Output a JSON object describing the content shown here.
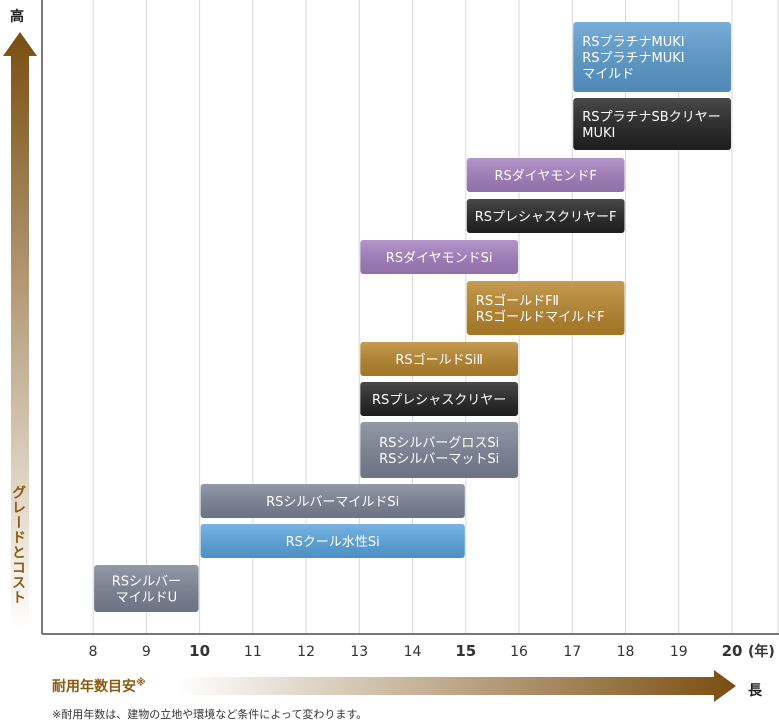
{
  "labels": {
    "high": "高",
    "long": "長",
    "y_title": "グレードとコスト",
    "x_title": "耐用年数目安",
    "x_title_mark": "※",
    "footnote": "※耐用年数は、建物の立地や環境など条件によって変わります。"
  },
  "chart_data": {
    "type": "bar",
    "orientation": "horizontal-range",
    "x": [
      8,
      9,
      10,
      11,
      12,
      13,
      14,
      15,
      16,
      17,
      18,
      19,
      20
    ],
    "x_tick_labels": [
      "8",
      "9",
      "10",
      "11",
      "12",
      "13",
      "14",
      "15",
      "16",
      "17",
      "18",
      "19",
      "20"
    ],
    "x_bold_ticks": [
      "10",
      "15",
      "20"
    ],
    "x_unit": "(年)",
    "xlim": [
      7.04,
      20
    ],
    "grid": true,
    "colors": {
      "slate": "#7b8496",
      "lightblue": "#5aa5e0",
      "black": "#222222",
      "gold": "#b8862c",
      "purple": "#a57fc0",
      "skyblue": "#5b9ccf",
      "arrow": "#7a4e10"
    },
    "bars": [
      {
        "lines": [
          "RSプラチナMUKI",
          "RSプラチナMUKI",
          "マイルド"
        ],
        "start": 17,
        "end": 20,
        "color": "skyblue"
      },
      {
        "lines": [
          "RSプラチナSBクリヤー",
          "MUKI"
        ],
        "start": 17,
        "end": 20,
        "color": "black"
      },
      {
        "lines": [
          "RSダイヤモンドF"
        ],
        "start": 15,
        "end": 18,
        "color": "purple"
      },
      {
        "lines": [
          "RSプレシャスクリヤーF"
        ],
        "start": 15,
        "end": 18,
        "color": "black"
      },
      {
        "lines": [
          "RSダイヤモンドSi"
        ],
        "start": 13,
        "end": 16,
        "color": "purple"
      },
      {
        "lines": [
          "RSゴールドFⅡ",
          "RSゴールドマイルドF"
        ],
        "start": 15,
        "end": 18,
        "color": "gold"
      },
      {
        "lines": [
          "RSゴールドSiⅡ"
        ],
        "start": 13,
        "end": 16,
        "color": "gold"
      },
      {
        "lines": [
          "RSプレシャスクリヤー"
        ],
        "start": 13,
        "end": 16,
        "color": "black"
      },
      {
        "lines": [
          "RSシルバーグロスSi",
          "RSシルバーマットSi"
        ],
        "start": 13,
        "end": 16,
        "color": "slate"
      },
      {
        "lines": [
          "RSシルバーマイルドSi"
        ],
        "start": 10,
        "end": 15,
        "color": "slate"
      },
      {
        "lines": [
          "RSクール水性Si"
        ],
        "start": 10,
        "end": 15,
        "color": "lightblue"
      },
      {
        "lines": [
          "RSシルバー",
          "マイルドU"
        ],
        "start": 8,
        "end": 10,
        "color": "slate"
      }
    ]
  }
}
